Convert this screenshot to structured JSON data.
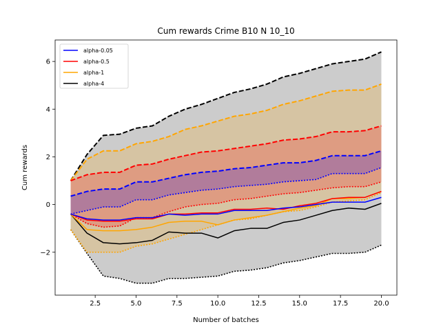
{
  "chart_data": {
    "type": "line",
    "title": "Cum rewards Crime B10 N 10_10",
    "xlabel": "Number of batches",
    "ylabel": "Cum rewards",
    "xlim": [
      0.05,
      20.95
    ],
    "ylim": [
      -3.8,
      6.9
    ],
    "xticks": [
      2.5,
      5.0,
      7.5,
      10.0,
      12.5,
      15.0,
      17.5,
      20.0
    ],
    "xtick_labels": [
      "2.5",
      "5.0",
      "7.5",
      "10.0",
      "12.5",
      "15.0",
      "17.5",
      "20.0"
    ],
    "yticks": [
      -2,
      0,
      2,
      4,
      6
    ],
    "ytick_labels": [
      "−2",
      "0",
      "2",
      "4",
      "6"
    ],
    "grid": false,
    "legend_position": "top-left",
    "x": [
      1,
      2,
      3,
      4,
      5,
      6,
      7,
      8,
      9,
      10,
      11,
      12,
      13,
      14,
      15,
      16,
      17,
      18,
      19,
      20
    ],
    "series": [
      {
        "name": "alpha-0.05",
        "color": "#0000ff",
        "values": [
          -0.4,
          -0.6,
          -0.65,
          -0.65,
          -0.55,
          -0.55,
          -0.4,
          -0.45,
          -0.4,
          -0.4,
          -0.25,
          -0.25,
          -0.25,
          -0.15,
          -0.1,
          0.0,
          0.1,
          0.1,
          0.1,
          0.3
        ],
        "upper": [
          0.35,
          0.55,
          0.65,
          0.65,
          0.95,
          0.95,
          1.1,
          1.25,
          1.35,
          1.4,
          1.5,
          1.55,
          1.65,
          1.75,
          1.75,
          1.85,
          2.05,
          2.05,
          2.05,
          2.25
        ],
        "lower": [
          -0.4,
          -0.25,
          -0.1,
          -0.1,
          0.2,
          0.2,
          0.4,
          0.5,
          0.6,
          0.65,
          0.75,
          0.8,
          0.85,
          0.95,
          1.0,
          1.05,
          1.3,
          1.3,
          1.3,
          1.55
        ]
      },
      {
        "name": "alpha-0.5",
        "color": "#ff0000",
        "values": [
          -0.4,
          -0.65,
          -0.7,
          -0.7,
          -0.6,
          -0.6,
          -0.4,
          -0.4,
          -0.35,
          -0.35,
          -0.2,
          -0.2,
          -0.15,
          -0.2,
          -0.05,
          0.05,
          0.25,
          0.3,
          0.3,
          0.55
        ],
        "upper": [
          1.0,
          1.25,
          1.35,
          1.35,
          1.65,
          1.7,
          1.9,
          2.05,
          2.2,
          2.25,
          2.35,
          2.45,
          2.55,
          2.7,
          2.75,
          2.85,
          3.05,
          3.05,
          3.1,
          3.3
        ],
        "lower": [
          -0.4,
          -0.8,
          -0.95,
          -0.9,
          -0.55,
          -0.55,
          -0.3,
          -0.1,
          0.0,
          0.05,
          0.2,
          0.25,
          0.35,
          0.45,
          0.5,
          0.6,
          0.7,
          0.75,
          0.75,
          0.95
        ]
      },
      {
        "name": "alpha-1",
        "color": "#ffa500",
        "values": [
          -0.4,
          -1.05,
          -1.1,
          -1.1,
          -1.05,
          -0.95,
          -0.75,
          -0.7,
          -0.7,
          -0.85,
          -0.65,
          -0.55,
          -0.45,
          -0.3,
          -0.15,
          -0.05,
          0.25,
          0.25,
          0.3,
          0.55
        ],
        "upper": [
          1.0,
          1.9,
          2.25,
          2.25,
          2.55,
          2.65,
          2.85,
          3.15,
          3.3,
          3.5,
          3.7,
          3.8,
          3.95,
          4.2,
          4.35,
          4.55,
          4.75,
          4.8,
          4.8,
          5.05
        ],
        "lower": [
          -1.05,
          -2.0,
          -2.0,
          -2.0,
          -1.75,
          -1.65,
          -1.45,
          -1.25,
          -1.05,
          -0.85,
          -0.65,
          -0.6,
          -0.45,
          -0.3,
          -0.25,
          -0.1,
          0.1,
          0.15,
          0.2,
          0.5
        ]
      },
      {
        "name": "alpha-4",
        "color": "#000000",
        "values": [
          -0.4,
          -1.2,
          -1.6,
          -1.65,
          -1.6,
          -1.5,
          -1.15,
          -1.2,
          -1.2,
          -1.4,
          -1.1,
          -1.0,
          -1.0,
          -0.75,
          -0.65,
          -0.45,
          -0.25,
          -0.15,
          -0.2,
          0.05
        ],
        "upper": [
          1.0,
          2.1,
          2.9,
          2.95,
          3.2,
          3.3,
          3.7,
          4.0,
          4.2,
          4.45,
          4.7,
          4.85,
          5.05,
          5.35,
          5.5,
          5.7,
          5.9,
          6.0,
          6.1,
          6.4
        ],
        "lower": [
          -1.05,
          -2.05,
          -3.0,
          -3.1,
          -3.3,
          -3.3,
          -3.1,
          -3.1,
          -3.05,
          -3.0,
          -2.8,
          -2.75,
          -2.65,
          -2.45,
          -2.35,
          -2.2,
          -2.05,
          -2.05,
          -2.0,
          -1.7
        ]
      }
    ]
  }
}
